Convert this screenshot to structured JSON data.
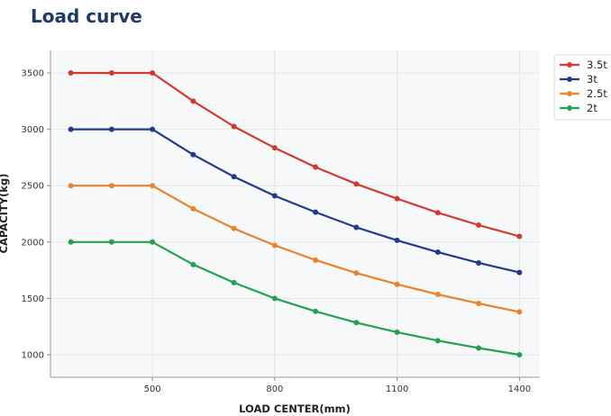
{
  "page": {
    "title": "Load curve"
  },
  "chart_data": {
    "type": "line",
    "title": "Load curve",
    "xlabel": "LOAD CENTER(mm)",
    "ylabel": "CAPACITY(kg)",
    "xlim": [
      250,
      1450
    ],
    "ylim": [
      800,
      3700
    ],
    "xticks": [
      500,
      800,
      1100,
      1400
    ],
    "yticks": [
      1000,
      1500,
      2000,
      2500,
      3000,
      3500
    ],
    "grid": true,
    "legend_position": "top-right outside",
    "x": [
      300,
      400,
      500,
      600,
      700,
      800,
      900,
      1000,
      1100,
      1200,
      1300,
      1400
    ],
    "series": [
      {
        "name": "3.5t",
        "color": "#d13b2d",
        "values": [
          3500,
          3500,
          3500,
          3250,
          3025,
          2835,
          2665,
          2515,
          2385,
          2260,
          2150,
          2050
        ]
      },
      {
        "name": "3t",
        "color": "#1f3b8a",
        "values": [
          3000,
          3000,
          3000,
          2775,
          2580,
          2410,
          2265,
          2130,
          2015,
          1910,
          1815,
          1730
        ]
      },
      {
        "name": "2.5t",
        "color": "#e8832a",
        "values": [
          2500,
          2500,
          2500,
          2295,
          2120,
          1970,
          1840,
          1725,
          1625,
          1535,
          1455,
          1380
        ]
      },
      {
        "name": "2t",
        "color": "#23a24d",
        "values": [
          2000,
          2000,
          2000,
          1800,
          1640,
          1500,
          1385,
          1285,
          1200,
          1125,
          1060,
          1000
        ]
      }
    ]
  }
}
